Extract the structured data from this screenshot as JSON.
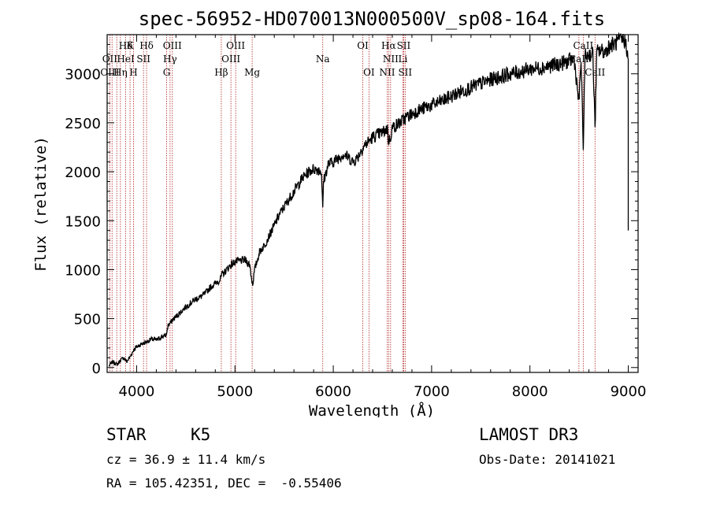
{
  "chart_data": {
    "type": "line",
    "title": "spec-56952-HD070013N000500V_sp08-164.fits",
    "xlabel": "Wavelength (Å)",
    "ylabel": "Flux (relative)",
    "xlim": [
      3700,
      9100
    ],
    "ylim": [
      -50,
      3400
    ],
    "x_ticks": [
      4000,
      5000,
      6000,
      7000,
      8000,
      9000
    ],
    "x_tick_labels": [
      "4000",
      "5000",
      "6000",
      "7000",
      "8000",
      "9000"
    ],
    "y_ticks": [
      0,
      500,
      1000,
      1500,
      2000,
      2500,
      3000
    ],
    "y_tick_labels": [
      "0",
      "500",
      "1000",
      "1500",
      "2000",
      "2500",
      "3000"
    ],
    "series": [
      {
        "name": "flux",
        "x": [
          3720,
          3760,
          3800,
          3840,
          3870,
          3900,
          3940,
          3970,
          4000,
          4050,
          4100,
          4150,
          4200,
          4250,
          4300,
          4320,
          4340,
          4360,
          4400,
          4450,
          4500,
          4550,
          4600,
          4650,
          4700,
          4750,
          4800,
          4850,
          4870,
          4900,
          4950,
          5000,
          5050,
          5100,
          5150,
          5170,
          5180,
          5200,
          5250,
          5300,
          5350,
          5400,
          5450,
          5500,
          5550,
          5600,
          5650,
          5700,
          5750,
          5800,
          5850,
          5880,
          5893,
          5900,
          5950,
          6000,
          6050,
          6100,
          6150,
          6200,
          6250,
          6300,
          6350,
          6400,
          6450,
          6500,
          6550,
          6563,
          6580,
          6600,
          6650,
          6700,
          6750,
          6800,
          6850,
          6900,
          6950,
          7000,
          7100,
          7200,
          7300,
          7400,
          7500,
          7600,
          7700,
          7800,
          7900,
          8000,
          8100,
          8200,
          8300,
          8400,
          8450,
          8498,
          8520,
          8542,
          8560,
          8600,
          8640,
          8662,
          8680,
          8720,
          8760,
          8800,
          8850,
          8900,
          8950,
          8980,
          9000
        ],
        "values": [
          20,
          60,
          30,
          80,
          100,
          60,
          120,
          180,
          210,
          240,
          260,
          290,
          280,
          310,
          330,
          430,
          450,
          480,
          520,
          570,
          620,
          660,
          700,
          720,
          760,
          820,
          860,
          900,
          950,
          980,
          1040,
          1080,
          1090,
          1100,
          1050,
          900,
          850,
          1000,
          1180,
          1250,
          1350,
          1450,
          1560,
          1640,
          1720,
          1800,
          1880,
          1950,
          2000,
          2030,
          2020,
          2000,
          1600,
          1900,
          2080,
          2100,
          2140,
          2180,
          2150,
          2100,
          2150,
          2250,
          2300,
          2350,
          2380,
          2400,
          2440,
          2300,
          2350,
          2450,
          2480,
          2520,
          2560,
          2590,
          2620,
          2640,
          2660,
          2680,
          2720,
          2770,
          2820,
          2860,
          2900,
          2940,
          2970,
          3000,
          3020,
          3050,
          3060,
          3080,
          3100,
          3130,
          3150,
          2700,
          3150,
          2250,
          3180,
          3200,
          3200,
          2450,
          3220,
          3240,
          3220,
          3280,
          3300,
          3330,
          3350,
          3300,
          3150
        ]
      }
    ],
    "line_labels": [
      {
        "text": "Hδ",
        "x": 3889,
        "row": 1
      },
      {
        "text": "K",
        "x": 3933,
        "row": 1
      },
      {
        "text": "Hδ",
        "x": 4101,
        "row": 1
      },
      {
        "text": "OIII",
        "x": 4363,
        "row": 1
      },
      {
        "text": "OIII",
        "x": 5007,
        "row": 1
      },
      {
        "text": "OI",
        "x": 6300,
        "row": 1
      },
      {
        "text": "Hα",
        "x": 6563,
        "row": 1
      },
      {
        "text": "SII",
        "x": 6716,
        "row": 1
      },
      {
        "text": "CaII",
        "x": 8542,
        "row": 1
      },
      {
        "text": "OII",
        "x": 3727,
        "row": 2
      },
      {
        "text": "HeI",
        "x": 3889,
        "row": 2
      },
      {
        "text": "SII",
        "x": 4070,
        "row": 2
      },
      {
        "text": "Hγ",
        "x": 4340,
        "row": 2
      },
      {
        "text": "OIII",
        "x": 4959,
        "row": 2
      },
      {
        "text": "Na",
        "x": 5893,
        "row": 2
      },
      {
        "text": "NII",
        "x": 6583,
        "row": 2
      },
      {
        "text": "Li",
        "x": 6708,
        "row": 2
      },
      {
        "text": "CaII",
        "x": 8498,
        "row": 2
      },
      {
        "text": "OIII",
        "x": 3727,
        "row": 3
      },
      {
        "text": "Hη",
        "x": 3835,
        "row": 3
      },
      {
        "text": "H",
        "x": 3968,
        "row": 3
      },
      {
        "text": "G",
        "x": 4305,
        "row": 3
      },
      {
        "text": "Hβ",
        "x": 4861,
        "row": 3
      },
      {
        "text": "Mg",
        "x": 5175,
        "row": 3
      },
      {
        "text": "OI",
        "x": 6363,
        "row": 3
      },
      {
        "text": "NII",
        "x": 6548,
        "row": 3
      },
      {
        "text": "SII",
        "x": 6731,
        "row": 3
      },
      {
        "text": "CaII",
        "x": 8662,
        "row": 3
      }
    ],
    "line_markers": [
      3727,
      3750,
      3798,
      3835,
      3889,
      3933,
      3968,
      4070,
      4101,
      4305,
      4340,
      4363,
      4861,
      4959,
      5007,
      5175,
      5893,
      6300,
      6363,
      6548,
      6563,
      6583,
      6708,
      6716,
      6731,
      8498,
      8542,
      8662
    ]
  },
  "info": {
    "object_class": "STAR",
    "subclass": "K5",
    "survey": "LAMOST DR3",
    "redshift": "cz = 36.9 ± 11.4 km/s",
    "obs_date": "Obs-Date: 20141021",
    "coords": "RA = 105.42351, DEC =  -0.55406"
  },
  "colors": {
    "spectrum": "#000000",
    "marker": "#b22222",
    "axis": "#000000"
  }
}
